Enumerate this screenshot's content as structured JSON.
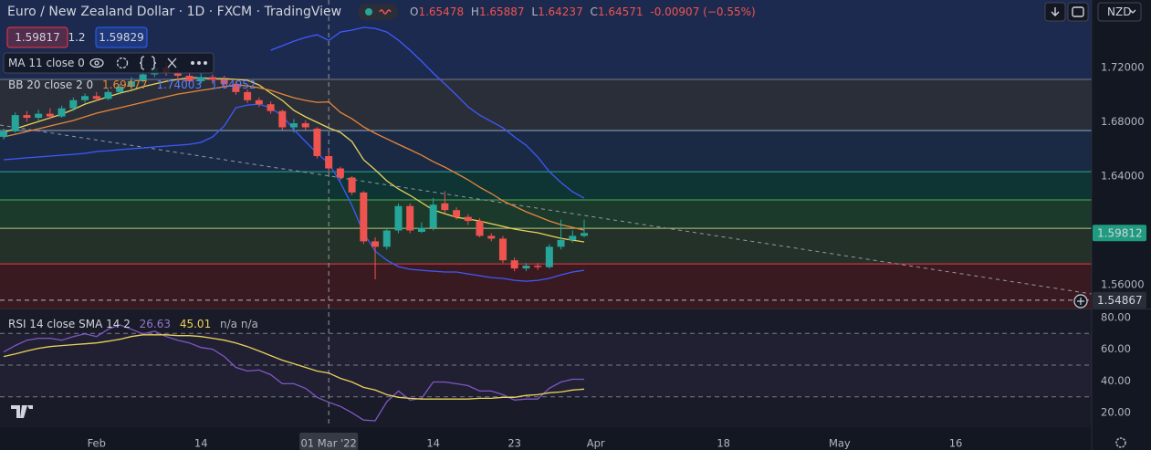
{
  "header": {
    "title": "Euro / New Zealand Dollar · 1D · FXCM · TradingView",
    "ohlc": [
      {
        "label": "O",
        "value": "1.65478"
      },
      {
        "label": "H",
        "value": "1.65887"
      },
      {
        "label": "L",
        "value": "1.64237"
      },
      {
        "label": "C",
        "value": "1.64571"
      }
    ],
    "change": "-0.00907 (−0.55%)"
  },
  "quote": {
    "bid": "1.59817",
    "spread": "1.2",
    "ask": "1.59829"
  },
  "currency": "NZD",
  "indicators": {
    "ma": "MA 11 close 0",
    "bb": "BB 20 close 2 0",
    "bb_values": [
      "1.69477",
      "1.74003",
      "1.64952"
    ],
    "rsi": "RSI 14 close SMA 14 2",
    "rsi_values": [
      "26.63",
      "45.01",
      "n/a n/a"
    ]
  },
  "chart_data": [
    {
      "type": "candlestick",
      "x": [
        "2022-01-20",
        "2022-01-21",
        "2022-01-24",
        "2022-01-25",
        "2022-01-26",
        "2022-01-27",
        "2022-01-28",
        "2022-01-31",
        "2022-02-01",
        "2022-02-02",
        "2022-02-03",
        "2022-02-04",
        "2022-02-07",
        "2022-02-08",
        "2022-02-09",
        "2022-02-10",
        "2022-02-11",
        "2022-02-14",
        "2022-02-15",
        "2022-02-16",
        "2022-02-17",
        "2022-02-18",
        "2022-02-21",
        "2022-02-22",
        "2022-02-23",
        "2022-02-24",
        "2022-02-25",
        "2022-02-28",
        "2022-03-01",
        "2022-03-02",
        "2022-03-03",
        "2022-03-04",
        "2022-03-07",
        "2022-03-08",
        "2022-03-09",
        "2022-03-10",
        "2022-03-11",
        "2022-03-14",
        "2022-03-15",
        "2022-03-16",
        "2022-03-17",
        "2022-03-18",
        "2022-03-21",
        "2022-03-22",
        "2022-03-23",
        "2022-03-24",
        "2022-03-25",
        "2022-03-28",
        "2022-03-29",
        "2022-03-30",
        "2022-03-31"
      ],
      "open": [
        1.669,
        1.673,
        1.685,
        1.683,
        1.686,
        1.684,
        1.69,
        1.696,
        1.699,
        1.697,
        1.702,
        1.706,
        1.71,
        1.715,
        1.72,
        1.716,
        1.714,
        1.71,
        1.713,
        1.711,
        1.708,
        1.702,
        1.696,
        1.693,
        1.688,
        1.676,
        1.679,
        1.675,
        1.65478,
        1.6457,
        1.639,
        1.628,
        1.592,
        1.588,
        1.6,
        1.618,
        1.599,
        1.602,
        1.62,
        1.615,
        1.61,
        1.607,
        1.596,
        1.594,
        1.578,
        1.572,
        1.574,
        1.573,
        1.588,
        1.593,
        1.596
      ],
      "high": [
        1.675,
        1.687,
        1.688,
        1.689,
        1.69,
        1.692,
        1.698,
        1.701,
        1.702,
        1.704,
        1.708,
        1.713,
        1.718,
        1.723,
        1.724,
        1.719,
        1.717,
        1.716,
        1.715,
        1.714,
        1.71,
        1.704,
        1.698,
        1.695,
        1.689,
        1.682,
        1.681,
        1.676,
        1.65887,
        1.647,
        1.64,
        1.629,
        1.595,
        1.602,
        1.62,
        1.62,
        1.606,
        1.624,
        1.629,
        1.617,
        1.612,
        1.609,
        1.598,
        1.596,
        1.58,
        1.576,
        1.576,
        1.59,
        1.608,
        1.6,
        1.608
      ],
      "low": [
        1.667,
        1.672,
        1.68,
        1.681,
        1.682,
        1.683,
        1.688,
        1.694,
        1.695,
        1.696,
        1.7,
        1.704,
        1.709,
        1.713,
        1.714,
        1.711,
        1.708,
        1.708,
        1.708,
        1.706,
        1.7,
        1.694,
        1.691,
        1.686,
        1.674,
        1.672,
        1.674,
        1.653,
        1.64237,
        1.637,
        1.626,
        1.59,
        1.564,
        1.586,
        1.598,
        1.598,
        1.598,
        1.6,
        1.613,
        1.608,
        1.604,
        1.595,
        1.592,
        1.576,
        1.57,
        1.57,
        1.571,
        1.572,
        1.586,
        1.591,
        1.595
      ],
      "close": [
        1.673,
        1.685,
        1.683,
        1.686,
        1.684,
        1.69,
        1.696,
        1.699,
        1.697,
        1.702,
        1.706,
        1.71,
        1.715,
        1.72,
        1.716,
        1.714,
        1.71,
        1.713,
        1.711,
        1.708,
        1.702,
        1.696,
        1.693,
        1.688,
        1.676,
        1.679,
        1.676,
        1.6548,
        1.64571,
        1.639,
        1.628,
        1.592,
        1.588,
        1.6,
        1.618,
        1.6,
        1.602,
        1.619,
        1.615,
        1.61,
        1.607,
        1.596,
        1.594,
        1.578,
        1.572,
        1.574,
        1.573,
        1.588,
        1.593,
        1.596,
        1.59812
      ],
      "up_color": "#26a69a",
      "down_color": "#ef5350",
      "series": [
        {
          "color": "#e9d25a",
          "values": [
            1.6723,
            1.6749,
            1.6776,
            1.6803,
            1.683,
            1.6857,
            1.6891,
            1.6931,
            1.6958,
            1.6985,
            1.7012,
            1.7032,
            1.7059,
            1.7079,
            1.7099,
            1.7113,
            1.7126,
            1.7126,
            1.7119,
            1.7119,
            1.7113,
            1.7106,
            1.7072,
            1.7012,
            1.6958,
            1.6884,
            1.6837,
            1.6797,
            1.6756,
            1.6723,
            1.6655,
            1.6521,
            1.6447,
            1.6366,
            1.6306,
            1.6259,
            1.6205,
            1.6151,
            1.6124,
            1.6097,
            1.6084,
            1.607,
            1.605,
            1.603,
            1.601,
            1.5996,
            1.5983,
            1.5962,
            1.5942,
            1.5929,
            1.5916
          ]
        },
        {
          "color": "#e8863a",
          "values": [
            1.6689,
            1.6709,
            1.6729,
            1.6749,
            1.677,
            1.679,
            1.681,
            1.6837,
            1.6864,
            1.6884,
            1.6904,
            1.6924,
            1.6944,
            1.6965,
            1.6985,
            1.7005,
            1.7018,
            1.7032,
            1.7045,
            1.7059,
            1.7072,
            1.7066,
            1.7052,
            1.7032,
            1.7005,
            1.6978,
            1.6958,
            1.6944,
            1.69477,
            1.687,
            1.6823,
            1.6763,
            1.6716,
            1.6675,
            1.6635,
            1.6595,
            1.6554,
            1.6507,
            1.6467,
            1.642,
            1.6373,
            1.6319,
            1.6272,
            1.6218,
            1.6178,
            1.6138,
            1.6104,
            1.607,
            1.6043,
            1.6023,
            1.6003
          ]
        },
        {
          "color": "#3d5afe",
          "values": [
            null,
            null,
            null,
            null,
            null,
            null,
            null,
            null,
            null,
            null,
            null,
            null,
            null,
            null,
            null,
            null,
            null,
            null,
            null,
            null,
            null,
            null,
            null,
            1.7328,
            1.7361,
            1.7395,
            1.7422,
            1.7442,
            1.74003,
            1.7462,
            1.7476,
            1.7496,
            1.7489,
            1.7462,
            1.7402,
            1.7328,
            1.7247,
            1.716,
            1.7079,
            1.6998,
            1.6911,
            1.685,
            1.6803,
            1.6756,
            1.6689,
            1.6628,
            1.6541,
            1.6434,
            1.6353,
            1.6285,
            1.6238
          ]
        },
        {
          "color": "#3d5afe",
          "values": [
            1.6521,
            1.6528,
            1.6535,
            1.6541,
            1.6548,
            1.6555,
            1.6561,
            1.6568,
            1.6582,
            1.6588,
            1.6595,
            1.6602,
            1.6608,
            1.6615,
            1.6622,
            1.6628,
            1.6635,
            1.6649,
            1.6689,
            1.677,
            1.6904,
            1.6924,
            1.6931,
            1.6904,
            1.6844,
            1.6743,
            1.6655,
            1.6568,
            1.64952,
            1.6353,
            1.6185,
            1.5983,
            1.5848,
            1.5781,
            1.5734,
            1.5714,
            1.5707,
            1.57,
            1.5694,
            1.5694,
            1.568,
            1.5667,
            1.5653,
            1.5647,
            1.5633,
            1.5626,
            1.5633,
            1.5647,
            1.5673,
            1.5694,
            1.5707
          ]
        }
      ],
      "levels": [
        {
          "value": 1.7113,
          "color": "#787b86",
          "fill": "#2a2e39"
        },
        {
          "value": 1.6736,
          "color": "#8ea6c8",
          "fill": "#1b2a44"
        },
        {
          "value": 1.6433,
          "color": "#26a69a",
          "fill": "#0f3434"
        },
        {
          "value": 1.6225,
          "color": "#4caf50",
          "fill": "#1b3a2c"
        },
        {
          "value": 1.6016,
          "color": "#b5c97a",
          "fill": "#243128"
        },
        {
          "value": 1.5754,
          "color": "#f23645",
          "fill": "#3a1a21"
        }
      ],
      "ylim": [
        1.5425,
        1.7698
      ],
      "yticks": [
        {
          "value": 1.72,
          "label": "1.72000"
        },
        {
          "value": 1.68,
          "label": "1.68000"
        },
        {
          "value": 1.64,
          "label": "1.64000"
        },
        {
          "value": 1.56,
          "label": "1.56000"
        }
      ],
      "last_price": {
        "value": 1.59812,
        "label": "1.59812"
      },
      "alert_line": {
        "value": 1.54867,
        "label": "1.54867"
      },
      "crosshair": "2022-03-01",
      "xticks": [
        {
          "value": "2022-02-01",
          "label": "Feb"
        },
        {
          "value": "2022-02-14",
          "label": "14"
        },
        {
          "value": "2022-03-01",
          "label": "01 Mar '22"
        },
        {
          "value": "2022-03-14",
          "label": "14"
        },
        {
          "value": "2022-03-23",
          "label": "23"
        },
        {
          "value": "2022-04-01",
          "label": "Apr"
        },
        {
          "value": "2022-04-18",
          "label": "18"
        },
        {
          "value": "2022-05-02",
          "label": "May"
        },
        {
          "value": "2022-05-16",
          "label": "16"
        }
      ]
    },
    {
      "type": "line",
      "series": [
        {
          "color": "#7e57c2",
          "values": [
            58.3,
            62.3,
            65.7,
            66.9,
            66.9,
            65.7,
            68.0,
            69.7,
            68.0,
            72.6,
            75.4,
            72.6,
            69.7,
            71.4,
            68.0,
            65.7,
            64.0,
            61.1,
            60.0,
            55.4,
            48.6,
            46.3,
            46.9,
            44.0,
            38.3,
            38.3,
            35.4,
            29.7,
            26.63,
            24.0,
            20.0,
            15.4,
            14.9,
            26.9,
            33.7,
            28.0,
            29.1,
            39.4,
            39.4,
            38.3,
            37.1,
            33.7,
            33.7,
            31.4,
            28.0,
            28.6,
            28.6,
            35.4,
            39.4,
            41.1,
            41.1
          ]
        },
        {
          "color": "#e9d25a",
          "values": [
            55.4,
            57.1,
            58.9,
            60.6,
            61.7,
            62.3,
            62.9,
            63.4,
            64.0,
            65.1,
            66.3,
            68.0,
            69.1,
            69.1,
            69.1,
            68.6,
            68.6,
            68.0,
            66.9,
            65.7,
            64.0,
            61.7,
            58.9,
            56.0,
            53.1,
            50.9,
            48.6,
            46.3,
            45.01,
            41.7,
            39.4,
            36.0,
            34.3,
            31.4,
            29.7,
            29.1,
            28.6,
            28.6,
            28.6,
            28.6,
            28.6,
            29.1,
            29.1,
            29.7,
            29.7,
            30.9,
            31.4,
            32.6,
            33.1,
            34.3,
            34.9
          ]
        }
      ],
      "hlines": [
        70,
        50,
        30
      ],
      "ylim": [
        10.9,
        85.1
      ],
      "yticks": [
        {
          "value": 80,
          "label": "80.00"
        },
        {
          "value": 60,
          "label": "60.00"
        },
        {
          "value": 40,
          "label": "40.00"
        },
        {
          "value": 20,
          "label": "20.00"
        }
      ]
    }
  ]
}
